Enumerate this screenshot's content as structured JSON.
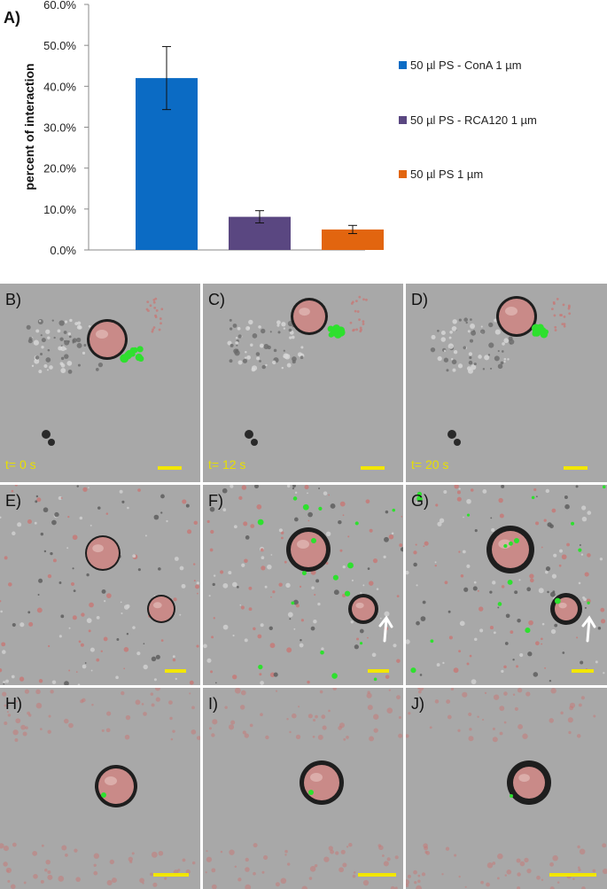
{
  "chart_data": {
    "type": "bar",
    "panel_label": "A)",
    "ylabel": "percent of interaction",
    "xlabel": "",
    "ylim": [
      0,
      60
    ],
    "ytick_labels": [
      "0.0%",
      "10.0%",
      "20.0%",
      "30.0%",
      "40.0%",
      "50.0%",
      "60.0%"
    ],
    "ytick_values": [
      0,
      10,
      20,
      30,
      40,
      50,
      60
    ],
    "legend_position": "right",
    "series": [
      {
        "name": "50 µl PS - ConA 1 µm",
        "value": 42.0,
        "error": 7.7,
        "color": "#0b6bc4"
      },
      {
        "name": "50 µl PS  - RCA120 1 µm",
        "value": 8.1,
        "error": 1.5,
        "color": "#5a4781"
      },
      {
        "name": "50 µl PS 1 µm",
        "value": 5.0,
        "error": 1.0,
        "color": "#e2650f"
      }
    ]
  },
  "panels": [
    {
      "label": "B)",
      "time": "t= 0 s"
    },
    {
      "label": "C)",
      "time": "t= 12 s"
    },
    {
      "label": "D)",
      "time": "t= 20 s"
    },
    {
      "label": "E)",
      "time": ""
    },
    {
      "label": "F)",
      "time": ""
    },
    {
      "label": "G)",
      "time": ""
    },
    {
      "label": "H)",
      "time": ""
    },
    {
      "label": "I)",
      "time": ""
    },
    {
      "label": "J)",
      "time": ""
    }
  ],
  "colors": {
    "micrograph_background": "#a8a8a8",
    "cell_fill": "#c98a88",
    "fluorescent_bead": "#2ee02e",
    "debris": "#c57a78",
    "scale_bar": "#f2e600",
    "time_label": "#e8e000",
    "arrow": "#ffffff"
  }
}
